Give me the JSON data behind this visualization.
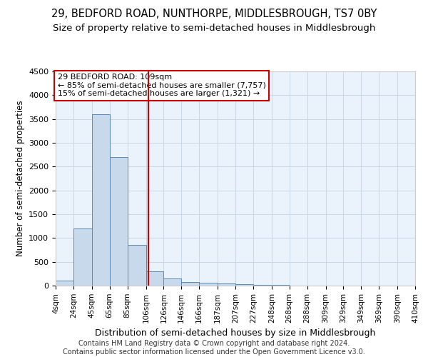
{
  "title": "29, BEDFORD ROAD, NUNTHORPE, MIDDLESBROUGH, TS7 0BY",
  "subtitle": "Size of property relative to semi-detached houses in Middlesbrough",
  "xlabel": "Distribution of semi-detached houses by size in Middlesbrough",
  "ylabel": "Number of semi-detached properties",
  "bin_labels": [
    "4sqm",
    "24sqm",
    "45sqm",
    "65sqm",
    "85sqm",
    "106sqm",
    "126sqm",
    "146sqm",
    "166sqm",
    "187sqm",
    "207sqm",
    "227sqm",
    "248sqm",
    "268sqm",
    "288sqm",
    "309sqm",
    "329sqm",
    "349sqm",
    "369sqm",
    "390sqm",
    "410sqm"
  ],
  "bin_edges": [
    4,
    24,
    45,
    65,
    85,
    106,
    126,
    146,
    166,
    187,
    207,
    227,
    248,
    268,
    288,
    309,
    329,
    349,
    369,
    390,
    410
  ],
  "values": [
    100,
    1200,
    3600,
    2700,
    850,
    300,
    150,
    80,
    60,
    40,
    25,
    15,
    10,
    5,
    3,
    2,
    1,
    1,
    0,
    0
  ],
  "bar_color": "#c9d9ec",
  "bar_edge_color": "#5a8ab5",
  "property_size": 109,
  "vline_color": "#cc0000",
  "annotation_line1": "29 BEDFORD ROAD: 109sqm",
  "annotation_line2": "← 85% of semi-detached houses are smaller (7,757)",
  "annotation_line3": "15% of semi-detached houses are larger (1,321) →",
  "annotation_box_color": "#ffffff",
  "annotation_box_edge": "#cc0000",
  "ylim": [
    0,
    4500
  ],
  "yticks": [
    0,
    500,
    1000,
    1500,
    2000,
    2500,
    3000,
    3500,
    4000,
    4500
  ],
  "grid_color": "#c8d8e8",
  "background_color": "#eaf2fb",
  "footer": "Contains HM Land Registry data © Crown copyright and database right 2024.\nContains public sector information licensed under the Open Government Licence v3.0.",
  "title_fontsize": 10.5,
  "subtitle_fontsize": 9.5,
  "footer_fontsize": 7.0
}
